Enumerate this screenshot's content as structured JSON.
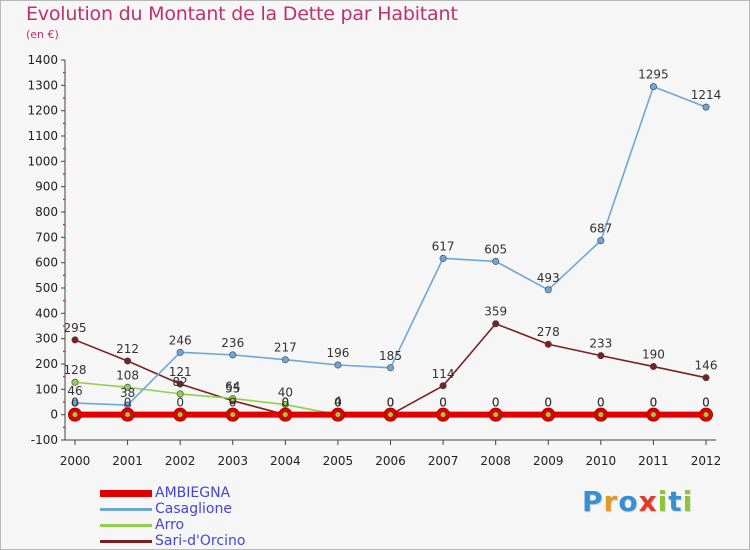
{
  "title": "Evolution du Montant de la Dette par Habitant",
  "subtitle": "(en €)",
  "logo": {
    "letters": [
      {
        "ch": "P",
        "color": "#3a8fd0"
      },
      {
        "ch": "r",
        "color": "#e2992a"
      },
      {
        "ch": "o",
        "color": "#3a8fd0"
      },
      {
        "ch": "x",
        "color": "#e23a2a"
      },
      {
        "ch": "i",
        "color": "#8cc43c"
      },
      {
        "ch": "t",
        "color": "#3a8fd0"
      },
      {
        "ch": "i",
        "color": "#8cc43c"
      }
    ]
  },
  "chart_data": {
    "type": "line",
    "x": [
      "2000",
      "2001",
      "2002",
      "2003",
      "2004",
      "2005",
      "2006",
      "2007",
      "2008",
      "2009",
      "2010",
      "2011",
      "2012"
    ],
    "ylim": [
      -100,
      1400
    ],
    "yticks": [
      -100,
      0,
      100,
      200,
      300,
      400,
      500,
      600,
      700,
      800,
      900,
      1000,
      1100,
      1200,
      1300,
      1400
    ],
    "grid": false,
    "legend_position": "bottom-left",
    "series": [
      {
        "name": "AMBIEGNA",
        "color": "#e00000",
        "values": [
          0,
          0,
          0,
          0,
          0,
          0,
          0,
          0,
          0,
          0,
          0,
          0,
          0
        ],
        "labels": [
          "0",
          "0",
          "0",
          "0",
          "0",
          "0",
          "0",
          "0",
          "0",
          "0",
          "0",
          "0",
          "0"
        ]
      },
      {
        "name": "Casaglione",
        "color": "#6fa6d8",
        "values": [
          46,
          38,
          246,
          236,
          217,
          196,
          185,
          617,
          605,
          493,
          687,
          1295,
          1214
        ],
        "labels": [
          "46",
          "38",
          "246",
          "236",
          "217",
          "196",
          "185",
          "617",
          "605",
          "493",
          "687",
          "1295",
          "1214"
        ]
      },
      {
        "name": "Arro",
        "color": "#90d050",
        "values": [
          128,
          108,
          82,
          64,
          40,
          0,
          0,
          0,
          0,
          0,
          0,
          0,
          0
        ],
        "labels": [
          "128",
          "108",
          "82",
          "64",
          "40",
          "0",
          "0",
          "0",
          "0",
          "0",
          "0",
          "0",
          "0"
        ]
      },
      {
        "name": "Sari-d'Orcino",
        "color": "#7a2020",
        "values": [
          295,
          212,
          121,
          55,
          0,
          4,
          0,
          114,
          359,
          278,
          233,
          190,
          146
        ],
        "labels": [
          "295",
          "212",
          "121",
          "55",
          "0",
          "4",
          "0",
          "114",
          "359",
          "278",
          "233",
          "190",
          "146"
        ]
      }
    ]
  }
}
